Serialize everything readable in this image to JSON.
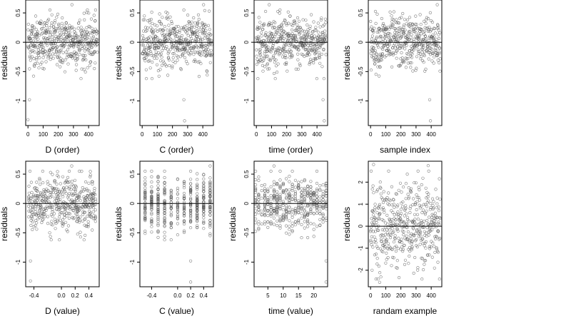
{
  "chart_data": [
    {
      "type": "scatter",
      "xlabel": "D (order)",
      "ylabel": "residuals",
      "xlim": [
        -15,
        470
      ],
      "ylim": [
        -1.42,
        0.72
      ],
      "xticks": [
        0,
        100,
        200,
        300,
        400
      ],
      "yticks": [
        -1.0,
        -0.5,
        0.0,
        0.5
      ],
      "reference_line_y": 0,
      "n_points": 460,
      "sample_points": [
        {
          "x": 0,
          "y": -1.32
        },
        {
          "x": 10,
          "y": -0.98
        },
        {
          "x": 290,
          "y": 0.64
        }
      ],
      "x_kind": "index"
    },
    {
      "type": "scatter",
      "xlabel": "C (order)",
      "ylabel": "residuals",
      "xlim": [
        -15,
        470
      ],
      "ylim": [
        -1.42,
        0.72
      ],
      "xticks": [
        0,
        100,
        200,
        300,
        400
      ],
      "yticks": [
        -1.0,
        -0.5,
        0.0,
        0.5
      ],
      "reference_line_y": 0,
      "n_points": 460,
      "sample_points": [
        {
          "x": 275,
          "y": -0.98
        },
        {
          "x": 280,
          "y": -1.34
        },
        {
          "x": 405,
          "y": 0.64
        }
      ],
      "x_kind": "index"
    },
    {
      "type": "scatter",
      "xlabel": "time (order)",
      "ylabel": "residuals",
      "xlim": [
        -15,
        470
      ],
      "ylim": [
        -1.42,
        0.72
      ],
      "xticks": [
        0,
        100,
        200,
        300,
        400
      ],
      "yticks": [
        -1.0,
        -0.5,
        0.0,
        0.5
      ],
      "reference_line_y": 0,
      "n_points": 460,
      "sample_points": [
        {
          "x": 85,
          "y": 0.64
        },
        {
          "x": 440,
          "y": -0.98
        },
        {
          "x": 448,
          "y": -1.34
        }
      ],
      "x_kind": "index"
    },
    {
      "type": "scatter",
      "xlabel": "sample index",
      "ylabel": "residuals",
      "xlim": [
        -15,
        470
      ],
      "ylim": [
        -1.42,
        0.72
      ],
      "xticks": [
        0,
        100,
        200,
        300,
        400
      ],
      "yticks": [
        -1.0,
        -0.5,
        0.0,
        0.5
      ],
      "reference_line_y": 0,
      "n_points": 460,
      "sample_points": [
        {
          "x": 390,
          "y": -0.98
        },
        {
          "x": 395,
          "y": -1.34
        },
        {
          "x": 440,
          "y": 0.64
        }
      ],
      "x_kind": "index"
    },
    {
      "type": "scatter",
      "xlabel": "D (value)",
      "ylabel": "residuals",
      "xlim": [
        -0.52,
        0.55
      ],
      "ylim": [
        -1.42,
        0.72
      ],
      "xticks": [
        -0.4,
        0.0,
        0.2,
        0.4
      ],
      "xticklabels": [
        "-0.4",
        "0.0",
        "0.2",
        "0.4"
      ],
      "yticks": [
        -1.0,
        -0.5,
        0.0,
        0.5
      ],
      "reference_line_y": 0,
      "n_points": 460,
      "sample_points": [
        {
          "x": -0.45,
          "y": -1.32
        },
        {
          "x": -0.45,
          "y": -0.98
        },
        {
          "x": 0.15,
          "y": 0.64
        }
      ],
      "x_kind": "continuous",
      "x_range": [
        -0.48,
        0.5
      ]
    },
    {
      "type": "scatter",
      "xlabel": "C (value)",
      "ylabel": "residuals",
      "xlim": [
        -0.58,
        0.55
      ],
      "ylim": [
        -1.42,
        0.72
      ],
      "xticks": [
        -0.4,
        0.0,
        0.2,
        0.4
      ],
      "xticklabels": [
        "-0.4",
        "0.0",
        "0.2",
        "0.4"
      ],
      "yticks": [
        -1.0,
        -0.5,
        0.0,
        0.5
      ],
      "reference_line_y": 0,
      "n_points": 460,
      "sample_points": [
        {
          "x": 0.2,
          "y": -0.98
        },
        {
          "x": 0.2,
          "y": -1.34
        },
        {
          "x": 0.5,
          "y": 0.64
        }
      ],
      "x_kind": "discrete",
      "x_levels": [
        -0.5,
        -0.4,
        -0.3,
        -0.2,
        -0.1,
        0.0,
        0.1,
        0.2,
        0.3,
        0.4,
        0.5
      ]
    },
    {
      "type": "scatter",
      "xlabel": "time (value)",
      "ylabel": "residuals",
      "xlim": [
        0.5,
        24.5
      ],
      "ylim": [
        -1.42,
        0.72
      ],
      "xticks": [
        5,
        10,
        15,
        20
      ],
      "xticklabels": [
        "5",
        "10",
        "15",
        "20"
      ],
      "yticks": [
        -1.0,
        -0.5,
        0.0,
        0.5
      ],
      "reference_line_y": 0,
      "n_points": 460,
      "sample_points": [
        {
          "x": 7,
          "y": 0.64
        },
        {
          "x": 24,
          "y": -0.98
        },
        {
          "x": 24,
          "y": -1.34
        }
      ],
      "x_kind": "discrete",
      "x_levels": [
        1,
        2,
        3,
        4,
        5,
        6,
        7,
        8,
        9,
        10,
        11,
        12,
        13,
        14,
        15,
        16,
        17,
        18,
        19,
        20,
        21,
        22,
        23,
        24
      ]
    },
    {
      "type": "scatter",
      "xlabel": "randam example",
      "ylabel": "residuals",
      "xlim": [
        -15,
        470
      ],
      "ylim": [
        -2.75,
        2.95
      ],
      "xticks": [
        0,
        100,
        200,
        300,
        400
      ],
      "yticks": [
        -2,
        -1,
        0,
        1,
        2
      ],
      "reference_line_y": 0,
      "n_points": 460,
      "sample_points": [
        {
          "x": 20,
          "y": 2.8
        },
        {
          "x": 380,
          "y": 2.75
        },
        {
          "x": 60,
          "y": -2.55
        }
      ],
      "x_kind": "index",
      "spread": "normal"
    }
  ]
}
